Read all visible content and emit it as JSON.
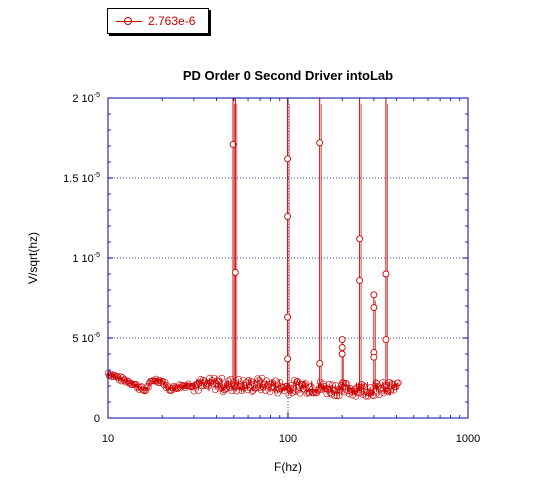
{
  "legend": {
    "label": "2.763e-6",
    "color": "#cc0000"
  },
  "colors": {
    "series": "#cc0000",
    "grid": "#0000aa",
    "axis": "#0000aa",
    "vline": "#0000aa"
  },
  "chart_data": {
    "type": "line",
    "title": "PD Order 0 Second Driver intoLab",
    "xlabel": "F(hz)",
    "ylabel": "V/sqrt(hz)",
    "xscale": "log",
    "xlim": [
      10,
      1000
    ],
    "ylim": [
      0,
      2e-05
    ],
    "x_ticks": [
      {
        "value": 10,
        "label": "10"
      },
      {
        "value": 100,
        "label": "100"
      },
      {
        "value": 1000,
        "label": "1000"
      }
    ],
    "y_ticks": [
      {
        "value": 0,
        "base": "0",
        "exp": ""
      },
      {
        "value": 5e-06,
        "base": "5 10",
        "exp": "-6"
      },
      {
        "value": 1e-05,
        "base": "1 10",
        "exp": "-5"
      },
      {
        "value": 1.5e-05,
        "base": "1.5 10",
        "exp": "-5"
      },
      {
        "value": 2e-05,
        "base": "2 10",
        "exp": "-5"
      }
    ],
    "grid": {
      "horizontal": "dotted",
      "vertical_at_x": [
        100
      ]
    },
    "legend_position": "top-left",
    "series": [
      {
        "name": "2.763e-6",
        "marker": "open-circle",
        "baseline": [
          {
            "x": 10,
            "y": 2.8e-06
          },
          {
            "x": 11,
            "y": 2.6e-06
          },
          {
            "x": 12,
            "y": 2.4e-06
          },
          {
            "x": 13,
            "y": 2.3e-06
          },
          {
            "x": 14,
            "y": 2.1e-06
          },
          {
            "x": 15,
            "y": 1.9e-06
          },
          {
            "x": 16,
            "y": 1.7e-06
          },
          {
            "x": 17,
            "y": 2.1e-06
          },
          {
            "x": 18,
            "y": 2.4e-06
          },
          {
            "x": 20,
            "y": 2.3e-06
          },
          {
            "x": 22,
            "y": 1.8e-06
          },
          {
            "x": 25,
            "y": 2e-06
          },
          {
            "x": 30,
            "y": 2.1e-06
          },
          {
            "x": 35,
            "y": 2e-06
          },
          {
            "x": 40,
            "y": 2.2e-06
          },
          {
            "x": 45,
            "y": 2e-06
          },
          {
            "x": 50,
            "y": 2.1e-06
          },
          {
            "x": 60,
            "y": 2e-06
          },
          {
            "x": 70,
            "y": 2.1e-06
          },
          {
            "x": 80,
            "y": 2e-06
          },
          {
            "x": 100,
            "y": 1.9e-06
          },
          {
            "x": 120,
            "y": 2e-06
          },
          {
            "x": 150,
            "y": 1.9e-06
          },
          {
            "x": 200,
            "y": 1.8e-06
          },
          {
            "x": 250,
            "y": 1.8e-06
          },
          {
            "x": 300,
            "y": 1.8e-06
          },
          {
            "x": 350,
            "y": 1.8e-06
          },
          {
            "x": 400,
            "y": 1.9e-06
          }
        ],
        "peaks": [
          {
            "x": 49.5,
            "y": 2e-05,
            "markers": [
              1.71e-05
            ]
          },
          {
            "x": 51,
            "y": 2e-05,
            "markers": [
              9.1e-06
            ]
          },
          {
            "x": 99.5,
            "y": 2e-05,
            "markers": [
              1.62e-05,
              1.26e-05,
              6.3e-06,
              3.7e-06
            ]
          },
          {
            "x": 150,
            "y": 2e-05,
            "markers": [
              1.72e-05,
              3.4e-06
            ]
          },
          {
            "x": 200,
            "y": 5e-06,
            "markers": [
              4.9e-06,
              4.4e-06,
              4e-06
            ]
          },
          {
            "x": 250,
            "y": 2e-05,
            "markers": [
              1.12e-05,
              8.6e-06
            ]
          },
          {
            "x": 300,
            "y": 7.7e-06,
            "markers": [
              7.7e-06,
              6.9e-06,
              4.1e-06,
              3.8e-06
            ]
          },
          {
            "x": 350,
            "y": 2e-05,
            "markers": [
              9e-06,
              4.9e-06
            ]
          }
        ]
      }
    ]
  }
}
